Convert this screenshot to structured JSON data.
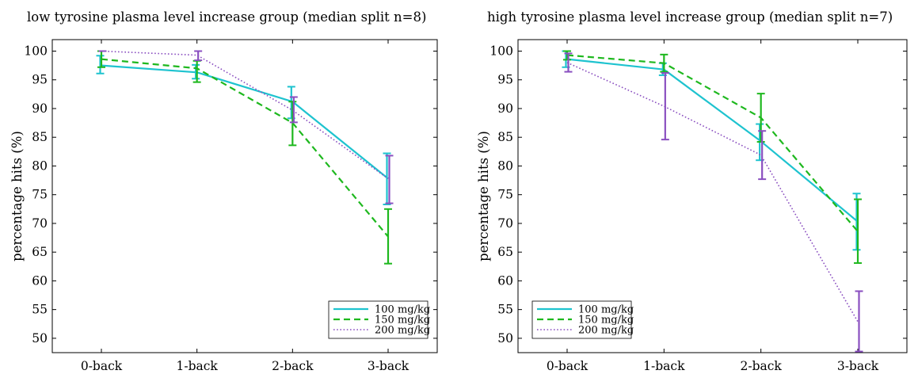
{
  "colors": {
    "100 mg/kg": "#1ec3cf",
    "150 mg/kg": "#1eb81e",
    "200 mg/kg": "#8a4fc0"
  },
  "chart_data": [
    {
      "type": "line",
      "title": "low tyrosine plasma level increase group (median split n=8)",
      "ylabel": "percentage hits (%)",
      "xlabel": "",
      "categories": [
        "0-back",
        "1-back",
        "2-back",
        "3-back"
      ],
      "ylim": [
        47.5,
        102
      ],
      "yticks": [
        50,
        55,
        60,
        65,
        70,
        75,
        80,
        85,
        90,
        95,
        100
      ],
      "legend_position": "bottom-right",
      "series": [
        {
          "name": "100 mg/kg",
          "style": "solid",
          "values": [
            97.5,
            96.3,
            91.2,
            77.8
          ],
          "err_low": [
            96.1,
            95.2,
            88.3,
            73.3
          ],
          "err_high": [
            99.2,
            97.6,
            93.8,
            82.2
          ]
        },
        {
          "name": "150 mg/kg",
          "style": "dashed",
          "values": [
            98.6,
            97.0,
            87.5,
            67.7
          ],
          "err_low": [
            97.2,
            94.6,
            83.6,
            63.0
          ],
          "err_high": [
            100.0,
            98.3,
            91.2,
            72.5
          ]
        },
        {
          "name": "200 mg/kg",
          "style": "dotted",
          "values": [
            100.0,
            99.3,
            89.7,
            77.8
          ],
          "err_low": [
            100.0,
            98.4,
            87.6,
            73.5
          ],
          "err_high": [
            100.0,
            100.0,
            92.0,
            81.8
          ]
        }
      ]
    },
    {
      "type": "line",
      "title": "high tyrosine plasma level increase group  (median split n=7)",
      "ylabel": "percentage hits (%)",
      "xlabel": "",
      "categories": [
        "0-back",
        "1-back",
        "2-back",
        "3-back"
      ],
      "ylim": [
        47.5,
        102
      ],
      "yticks": [
        50,
        55,
        60,
        65,
        70,
        75,
        80,
        85,
        90,
        95,
        100
      ],
      "legend_position": "bottom-left",
      "series": [
        {
          "name": "100 mg/kg",
          "style": "solid",
          "values": [
            98.6,
            96.8,
            84.3,
            70.3
          ],
          "err_low": [
            97.2,
            95.8,
            81.0,
            65.4
          ],
          "err_high": [
            100.0,
            97.9,
            87.3,
            75.2
          ]
        },
        {
          "name": "150 mg/kg",
          "style": "dashed",
          "values": [
            99.3,
            97.9,
            88.4,
            68.6
          ],
          "err_low": [
            98.5,
            96.4,
            84.2,
            63.1
          ],
          "err_high": [
            100.0,
            99.4,
            92.6,
            74.2
          ]
        },
        {
          "name": "200 mg/kg",
          "style": "dotted",
          "values": [
            98.0,
            90.4,
            81.9,
            52.9
          ],
          "err_low": [
            96.4,
            84.6,
            77.7,
            47.7
          ],
          "err_high": [
            99.6,
            96.2,
            86.1,
            58.2
          ]
        }
      ]
    }
  ]
}
